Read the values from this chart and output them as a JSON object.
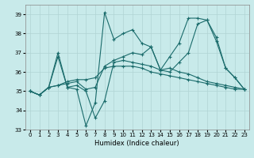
{
  "xlabel": "Humidex (Indice chaleur)",
  "bg_color": "#c8eaea",
  "line_color": "#1a6b6b",
  "grid_color": "#b0d4d4",
  "ylim": [
    33,
    39.5
  ],
  "xlim": [
    -0.5,
    23.5
  ],
  "yticks": [
    33,
    34,
    35,
    36,
    37,
    38,
    39
  ],
  "xticks": [
    0,
    1,
    2,
    3,
    4,
    5,
    6,
    7,
    8,
    9,
    10,
    11,
    12,
    13,
    14,
    15,
    16,
    17,
    18,
    19,
    20,
    21,
    22,
    23
  ],
  "series": [
    [
      35.0,
      34.8,
      35.2,
      37.0,
      35.2,
      35.1,
      33.2,
      34.4,
      39.1,
      37.7,
      38.0,
      38.2,
      37.5,
      37.3,
      36.1,
      36.2,
      36.0,
      35.9,
      35.7,
      35.5,
      35.4,
      35.3,
      35.2,
      35.1
    ],
    [
      35.0,
      34.8,
      35.2,
      36.8,
      35.2,
      35.3,
      35.0,
      33.6,
      34.5,
      36.5,
      36.6,
      36.5,
      36.4,
      36.3,
      36.1,
      36.0,
      36.5,
      37.0,
      38.5,
      38.7,
      37.8,
      36.2,
      35.7,
      35.1
    ],
    [
      35.0,
      34.8,
      35.2,
      35.3,
      35.4,
      35.5,
      35.1,
      35.2,
      36.3,
      36.6,
      36.8,
      37.0,
      36.9,
      37.3,
      36.1,
      36.8,
      37.5,
      38.8,
      38.8,
      38.7,
      37.6,
      36.2,
      35.7,
      35.1
    ],
    [
      35.0,
      34.8,
      35.2,
      35.3,
      35.5,
      35.6,
      35.6,
      35.7,
      36.2,
      36.3,
      36.3,
      36.3,
      36.2,
      36.0,
      35.9,
      35.8,
      35.7,
      35.6,
      35.5,
      35.4,
      35.3,
      35.2,
      35.1,
      35.1
    ]
  ]
}
